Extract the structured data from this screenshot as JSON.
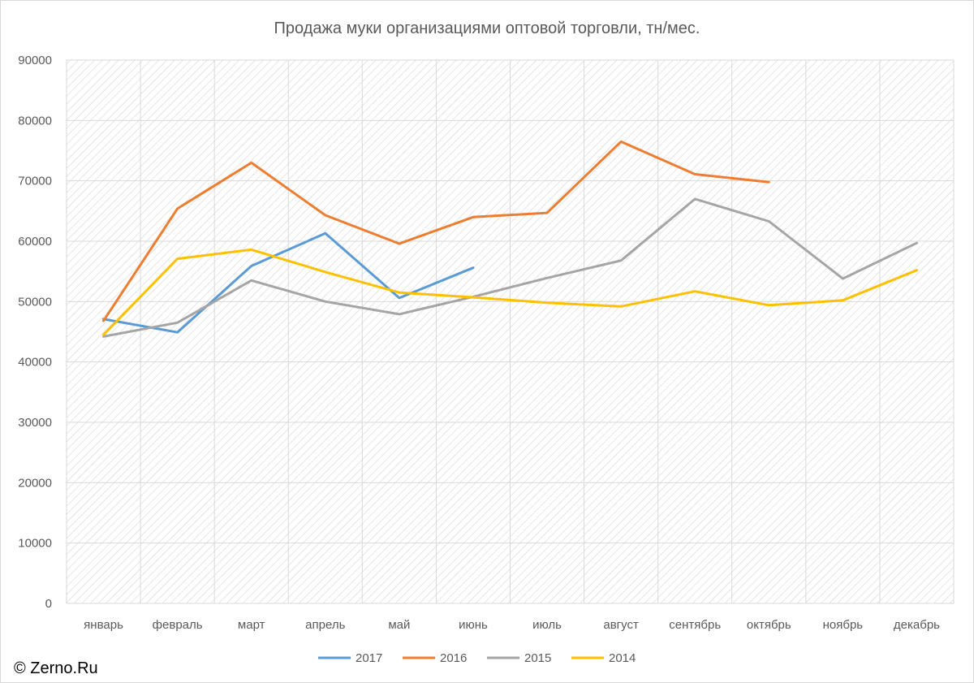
{
  "watermark": "© Zerno.Ru",
  "chart_data": {
    "type": "line",
    "title": "Продажа муки организациями оптовой торговли, тн/мес.",
    "xlabel": "",
    "ylabel": "",
    "categories": [
      "январь",
      "февраль",
      "март",
      "апрель",
      "май",
      "июнь",
      "июль",
      "август",
      "сентябрь",
      "октябрь",
      "ноябрь",
      "декабрь"
    ],
    "ylim": [
      0,
      90000
    ],
    "yticks": [
      0,
      10000,
      20000,
      30000,
      40000,
      50000,
      60000,
      70000,
      80000,
      90000
    ],
    "grid": true,
    "plot_background": "diagonal hatch",
    "legend_position": "bottom",
    "series": [
      {
        "name": "2017",
        "color": "#5b9bd5",
        "values": [
          47100,
          44900,
          55900,
          61300,
          50600,
          55600,
          null,
          null,
          null,
          null,
          null,
          null
        ]
      },
      {
        "name": "2016",
        "color": "#ed7d31",
        "values": [
          46800,
          65400,
          73000,
          64300,
          59600,
          64000,
          64700,
          76500,
          71100,
          69800,
          null,
          null
        ]
      },
      {
        "name": "2015",
        "color": "#a5a5a5",
        "values": [
          44200,
          46500,
          53500,
          50000,
          47900,
          50800,
          53900,
          56800,
          67000,
          63300,
          53800,
          59700
        ]
      },
      {
        "name": "2014",
        "color": "#ffc000",
        "values": [
          44500,
          57100,
          58600,
          54900,
          51500,
          50700,
          49800,
          49200,
          51700,
          49400,
          50200,
          55200
        ]
      }
    ]
  }
}
